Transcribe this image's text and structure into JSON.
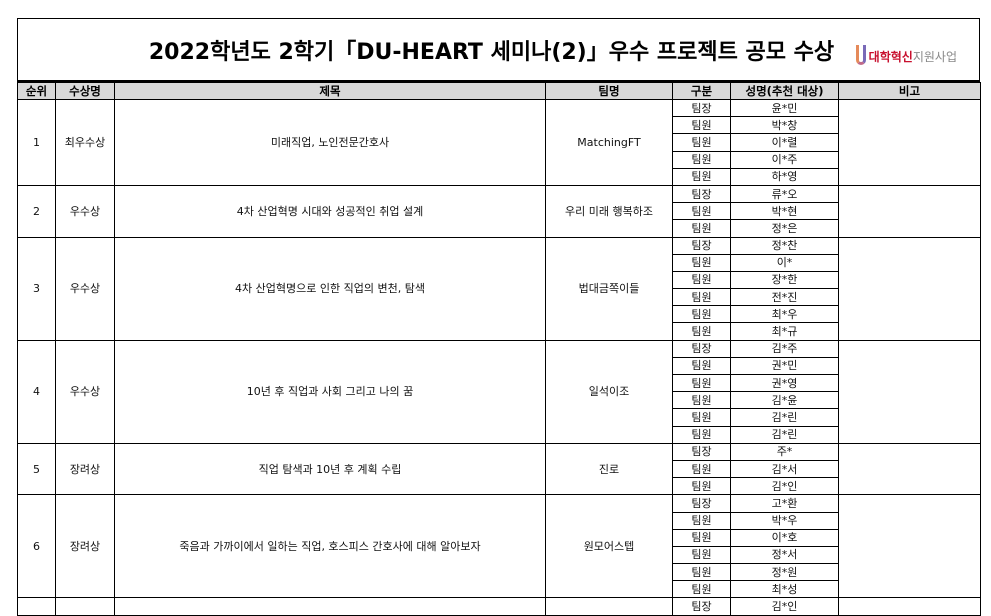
{
  "title": "2022학년도 2학기「DU-HEART 세미나(2)」우수 프로젝트 공모 수상",
  "logo": {
    "part1": "대학혁신",
    "part2": "지원사업"
  },
  "headers": [
    "순위",
    "수상명",
    "제목",
    "팀명",
    "구분",
    "성명(추천 대상)",
    "비고"
  ],
  "groups": [
    {
      "rank": "1",
      "award": "최우수상",
      "subject": "미래직업, 노인전문간호사",
      "team": "MatchingFT",
      "members": [
        [
          "팀장",
          "윤*민"
        ],
        [
          "팀원",
          "박*창"
        ],
        [
          "팀원",
          "이*렬"
        ],
        [
          "팀원",
          "이*주"
        ],
        [
          "팀원",
          "하*영"
        ]
      ]
    },
    {
      "rank": "2",
      "award": "우수상",
      "subject": "4차 산업혁명 시대와 성공적인 취업 설계",
      "team": "우리 미래 행복하조",
      "members": [
        [
          "팀장",
          "류*오"
        ],
        [
          "팀원",
          "박*현"
        ],
        [
          "팀원",
          "정*은"
        ]
      ]
    },
    {
      "rank": "3",
      "award": "우수상",
      "subject": "4차 산업혁명으로 인한 직업의 변천, 탐색",
      "team": "법대금쪽이들",
      "members": [
        [
          "팀장",
          "정*찬"
        ],
        [
          "팀원",
          "이*"
        ],
        [
          "팀원",
          "장*한"
        ],
        [
          "팀원",
          "전*진"
        ],
        [
          "팀원",
          "최*우"
        ],
        [
          "팀원",
          "최*규"
        ]
      ]
    },
    {
      "rank": "4",
      "award": "우수상",
      "subject": "10년 후 직업과 사회 그리고 나의 꿈",
      "team": "일석이조",
      "members": [
        [
          "팀장",
          "김*주"
        ],
        [
          "팀원",
          "권*민"
        ],
        [
          "팀원",
          "권*영"
        ],
        [
          "팀원",
          "김*윤"
        ],
        [
          "팀원",
          "김*린"
        ],
        [
          "팀원",
          "김*린"
        ]
      ]
    },
    {
      "rank": "5",
      "award": "장려상",
      "subject": "직업 탐색과 10년 후 계획 수립",
      "team": "진로",
      "members": [
        [
          "팀장",
          "주*"
        ],
        [
          "팀원",
          "김*서"
        ],
        [
          "팀원",
          "김*인"
        ]
      ]
    },
    {
      "rank": "6",
      "award": "장려상",
      "subject": "죽음과 가까이에서 일하는 직업, 호스피스 간호사에 대해 알아보자",
      "team": "원모어스텝",
      "members": [
        [
          "팀장",
          "고*환"
        ],
        [
          "팀원",
          "박*우"
        ],
        [
          "팀원",
          "이*호"
        ],
        [
          "팀원",
          "정*서"
        ],
        [
          "팀원",
          "정*원"
        ],
        [
          "팀원",
          "최*성"
        ]
      ]
    },
    {
      "rank": "",
      "award": "",
      "subject": "",
      "team": "",
      "members": [
        [
          "팀장",
          "김*인"
        ]
      ]
    }
  ]
}
